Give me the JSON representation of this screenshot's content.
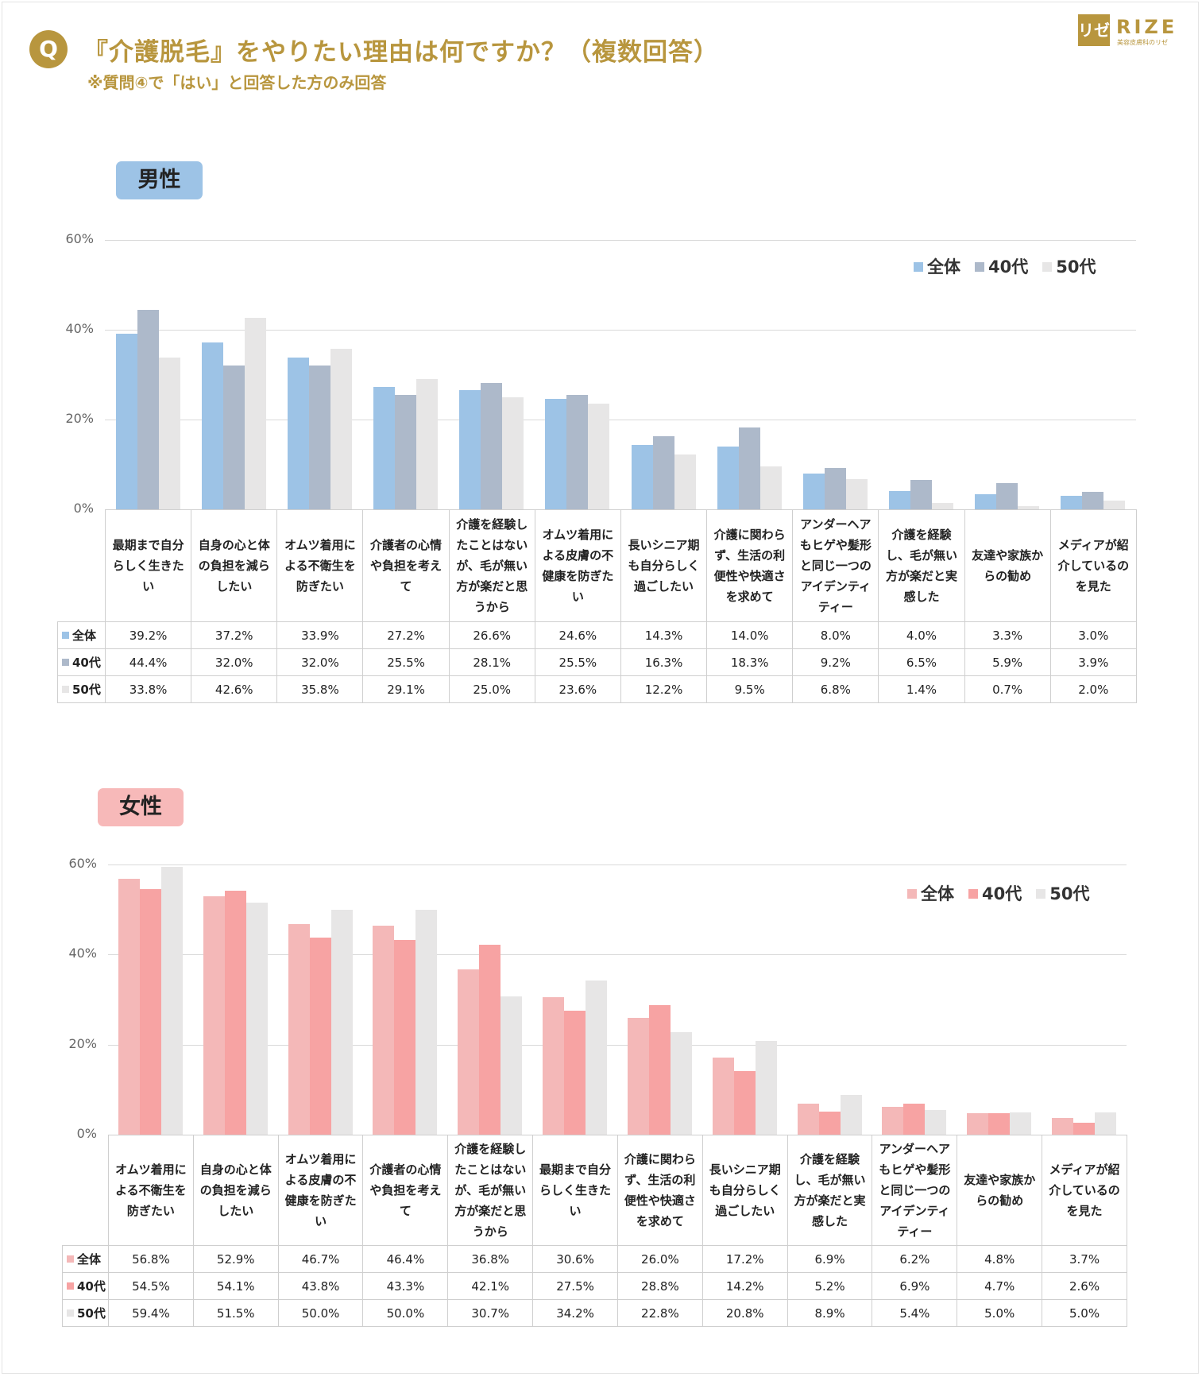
{
  "header": {
    "badge": "Q",
    "title": "『介護脱毛』をやりたい理由は何ですか？（複数回答）",
    "subtitle": "※質問④で「はい」と回答した方のみ回答"
  },
  "logo": {
    "mark": "リゼ",
    "word": "RIZE",
    "sub": "美容皮膚科のリゼ"
  },
  "colors": {
    "male": [
      "#9dc3e6",
      "#adb9ca",
      "#e7e6e6"
    ],
    "female": [
      "#f4b8b8",
      "#f7a3a3",
      "#e7e6e6"
    ],
    "male_badge": "#9dc3e6",
    "female_badge": "#f7b9b9",
    "accent": "#b8963e"
  },
  "chart_data": [
    {
      "type": "bar",
      "title": "男性",
      "categories": [
        "最期まで自分らしく生きたい",
        "自身の心と体の負担を減らしたい",
        "オムツ着用による不衛生を防ぎたい",
        "介護者の心情や負担を考えて",
        "介護を経験したことはないが、毛が無い方が楽だと思うから",
        "オムツ着用による皮膚の不健康を防ぎたい",
        "長いシニア期も自分らしく過ごしたい",
        "介護に関わらず、生活の利便性や快適さを求めて",
        "アンダーヘアもヒゲや髪形と同じ一つのアイデンティティー",
        "介護を経験し、毛が無い方が楽だと実感した",
        "友達や家族からの勧め",
        "メディアが紹介しているのを見た"
      ],
      "category_lines": [
        [
          "最期まで自分",
          "らしく生きた",
          "い"
        ],
        [
          "自身の心と体",
          "の負担を減ら",
          "したい"
        ],
        [
          "オムツ着用に",
          "よる不衛生を",
          "防ぎたい"
        ],
        [
          "介護者の心情",
          "や負担を考え",
          "て"
        ],
        [
          "介護を経験し",
          "たことはない",
          "が、毛が無い",
          "方が楽だと思",
          "うから"
        ],
        [
          "オムツ着用に",
          "よる皮膚の不",
          "健康を防ぎた",
          "い"
        ],
        [
          "長いシニア期",
          "も自分らしく",
          "過ごしたい"
        ],
        [
          "介護に関わら",
          "ず、生活の利",
          "便性や快適さ",
          "を求めて"
        ],
        [
          "アンダーヘア",
          "もヒゲや髪形",
          "と同じ一つの",
          "アイデンティ",
          "ティー"
        ],
        [
          "介護を経験",
          "し、毛が無い",
          "方が楽だと実",
          "感した"
        ],
        [
          "友達や家族か",
          "らの勧め"
        ],
        [
          "メディアが紹",
          "介しているの",
          "を見た"
        ]
      ],
      "series": [
        {
          "name": "全体",
          "values": [
            39.2,
            37.2,
            33.9,
            27.2,
            26.6,
            24.6,
            14.3,
            14.0,
            8.0,
            4.0,
            3.3,
            3.0
          ],
          "labels": [
            "39.2%",
            "37.2%",
            "33.9%",
            "27.2%",
            "26.6%",
            "24.6%",
            "14.3%",
            "14.0%",
            "8.0%",
            "4.0%",
            "3.3%",
            "3.0%"
          ]
        },
        {
          "name": "40代",
          "values": [
            44.4,
            32.0,
            32.0,
            25.5,
            28.1,
            25.5,
            16.3,
            18.3,
            9.2,
            6.5,
            5.9,
            3.9
          ],
          "labels": [
            "44.4%",
            "32.0%",
            "32.0%",
            "25.5%",
            "28.1%",
            "25.5%",
            "16.3%",
            "18.3%",
            "9.2%",
            "6.5%",
            "5.9%",
            "3.9%"
          ]
        },
        {
          "name": "50代",
          "values": [
            33.8,
            42.6,
            35.8,
            29.1,
            25.0,
            23.6,
            12.2,
            9.5,
            6.8,
            1.4,
            0.7,
            2.0
          ],
          "labels": [
            "33.8%",
            "42.6%",
            "35.8%",
            "29.1%",
            "25.0%",
            "23.6%",
            "12.2%",
            "9.5%",
            "6.8%",
            "1.4%",
            "0.7%",
            "2.0%"
          ]
        }
      ],
      "yticks": [
        "0%",
        "20%",
        "40%",
        "60%"
      ],
      "ylim": [
        0,
        60
      ],
      "grid": true,
      "legend": "top-right"
    },
    {
      "type": "bar",
      "title": "女性",
      "categories": [
        "オムツ着用による不衛生を防ぎたい",
        "自身の心と体の負担を減らしたい",
        "オムツ着用による皮膚の不健康を防ぎたい",
        "介護者の心情や負担を考えて",
        "介護を経験したことはないが、毛が無い方が楽だと思うから",
        "最期まで自分らしく生きたい",
        "介護に関わらず、生活の利便性や快適さを求めて",
        "長いシニア期も自分らしく過ごしたい",
        "介護を経験し、毛が無い方が楽だと実感した",
        "アンダーヘアもヒゲや髪形と同じ一つのアイデンティティー",
        "友達や家族からの勧め",
        "メディアが紹介しているのを見た"
      ],
      "category_lines": [
        [
          "オムツ着用に",
          "よる不衛生を",
          "防ぎたい"
        ],
        [
          "自身の心と体",
          "の負担を減ら",
          "したい"
        ],
        [
          "オムツ着用に",
          "よる皮膚の不",
          "健康を防ぎた",
          "い"
        ],
        [
          "介護者の心情",
          "や負担を考え",
          "て"
        ],
        [
          "介護を経験し",
          "たことはない",
          "が、毛が無い",
          "方が楽だと思",
          "うから"
        ],
        [
          "最期まで自分",
          "らしく生きた",
          "い"
        ],
        [
          "介護に関わら",
          "ず、生活の利",
          "便性や快適さ",
          "を求めて"
        ],
        [
          "長いシニア期",
          "も自分らしく",
          "過ごしたい"
        ],
        [
          "介護を経験",
          "し、毛が無い",
          "方が楽だと実",
          "感した"
        ],
        [
          "アンダーヘア",
          "もヒゲや髪形",
          "と同じ一つの",
          "アイデンティ",
          "ティー"
        ],
        [
          "友達や家族か",
          "らの勧め"
        ],
        [
          "メディアが紹",
          "介しているの",
          "を見た"
        ]
      ],
      "series": [
        {
          "name": "全体",
          "values": [
            56.8,
            52.9,
            46.7,
            46.4,
            36.8,
            30.6,
            26.0,
            17.2,
            6.9,
            6.2,
            4.8,
            3.7
          ],
          "labels": [
            "56.8%",
            "52.9%",
            "46.7%",
            "46.4%",
            "36.8%",
            "30.6%",
            "26.0%",
            "17.2%",
            "6.9%",
            "6.2%",
            "4.8%",
            "3.7%"
          ]
        },
        {
          "name": "40代",
          "values": [
            54.5,
            54.1,
            43.8,
            43.3,
            42.1,
            27.5,
            28.8,
            14.2,
            5.2,
            6.9,
            4.7,
            2.6
          ],
          "labels": [
            "54.5%",
            "54.1%",
            "43.8%",
            "43.3%",
            "42.1%",
            "27.5%",
            "28.8%",
            "14.2%",
            "5.2%",
            "6.9%",
            "4.7%",
            "2.6%"
          ]
        },
        {
          "name": "50代",
          "values": [
            59.4,
            51.5,
            50.0,
            50.0,
            30.7,
            34.2,
            22.8,
            20.8,
            8.9,
            5.4,
            5.0,
            5.0
          ],
          "labels": [
            "59.4%",
            "51.5%",
            "50.0%",
            "50.0%",
            "30.7%",
            "34.2%",
            "22.8%",
            "20.8%",
            "8.9%",
            "5.4%",
            "5.0%",
            "5.0%"
          ]
        }
      ],
      "yticks": [
        "0%",
        "20%",
        "40%",
        "60%"
      ],
      "ylim": [
        0,
        60
      ],
      "grid": true,
      "legend": "top-right"
    }
  ]
}
